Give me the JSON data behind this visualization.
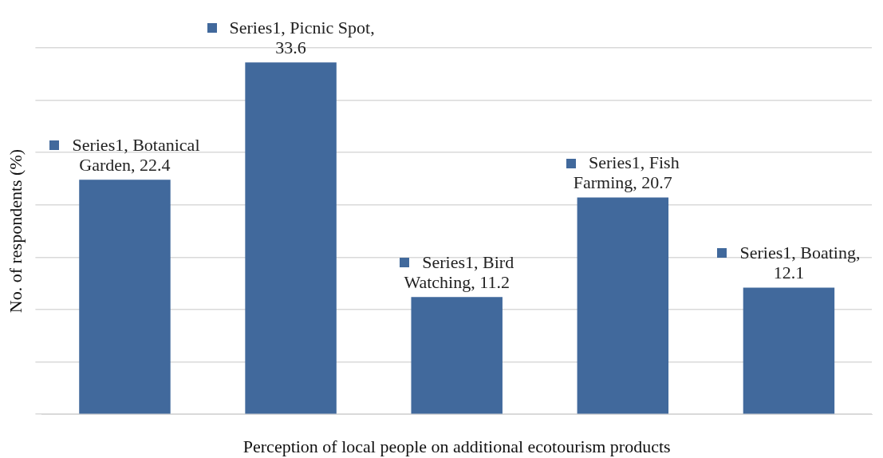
{
  "chart_data": {
    "type": "bar",
    "xlabel": "Perception of local people on additional ecotourism products",
    "ylabel": "No. of respondents (%)",
    "categories": [
      null,
      null,
      null,
      null,
      null
    ],
    "series": [
      {
        "color": "#41699c",
        "values": [
          22.4,
          33.6,
          11.2,
          20.7,
          12.1
        ],
        "value_labels": [
          "Series1, Botanical Garden, 22.4",
          "Series1, Picnic Spot, 33.6",
          "Series1, Bird Watching, 11.2",
          "Series1, Fish Farming, 20.7",
          "Series1, Boating, 12.1"
        ]
      }
    ],
    "ylim": [
      0,
      35
    ],
    "yticks": [
      {
        "value": 0,
        "label": null
      },
      {
        "value": 5,
        "label": null
      },
      {
        "value": 10,
        "label": null
      },
      {
        "value": 15,
        "label": null
      },
      {
        "value": 20,
        "label": null
      },
      {
        "value": 25,
        "label": null
      },
      {
        "value": 30,
        "label": null
      },
      {
        "value": 35,
        "label": null
      }
    ],
    "grid": "y",
    "legend": false
  }
}
